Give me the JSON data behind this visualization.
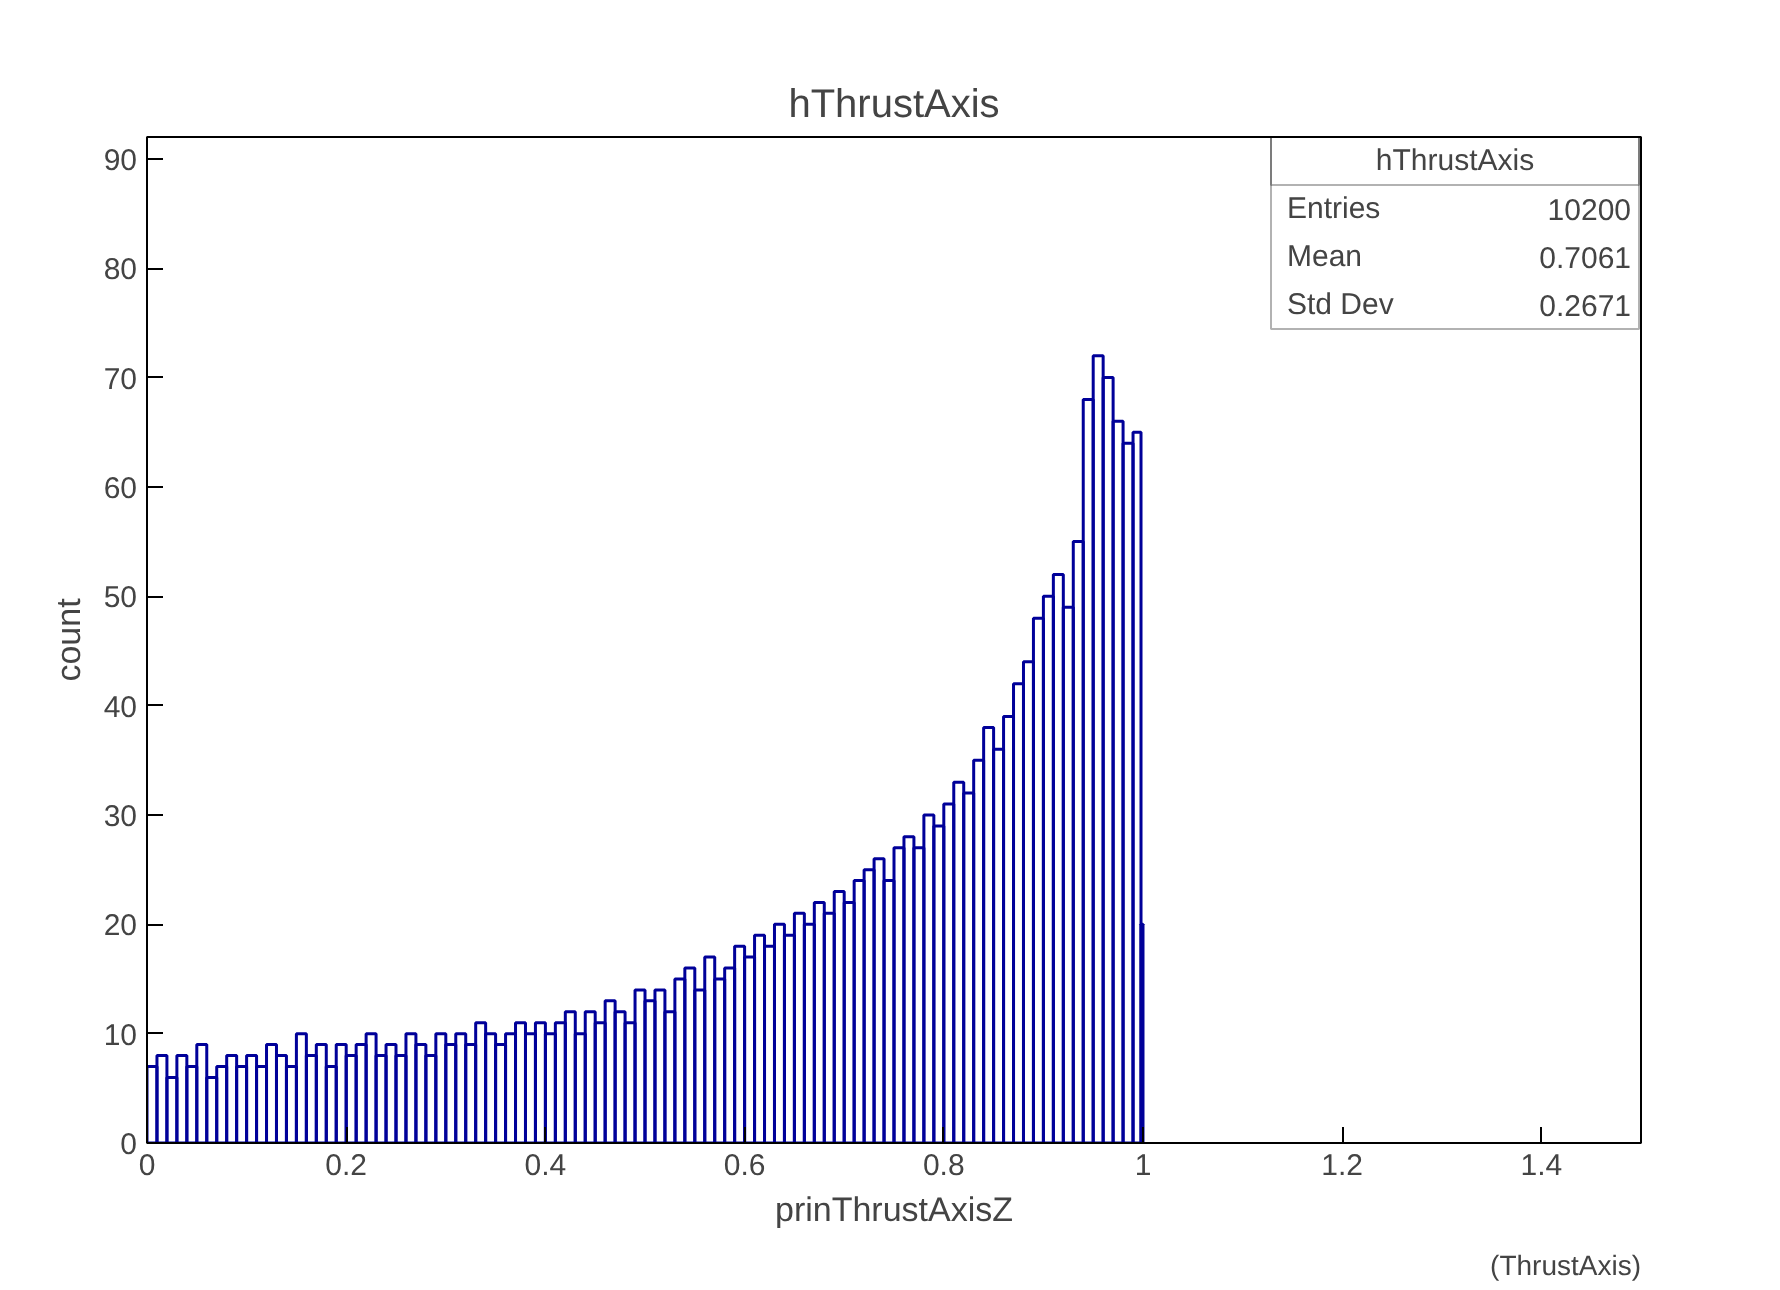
{
  "chart_data": {
    "type": "histogram",
    "title": "hThrustAxis",
    "xlabel": "prinThrustAxisZ",
    "ylabel": "count",
    "annotations": [
      "hThrustAxis",
      "Entries",
      "10200",
      "Mean",
      "0.7061",
      "Std Dev",
      "0.2671",
      "(ThrustAxis)"
    ],
    "bins": [
      0,
      0.01,
      0.02,
      0.03,
      0.04,
      0.05,
      0.06,
      0.07,
      0.08,
      0.09,
      0.1,
      0.11,
      0.12,
      0.13,
      0.14,
      0.15,
      0.16,
      0.17,
      0.18,
      0.19,
      0.2,
      0.21,
      0.22,
      0.23,
      0.24,
      0.25,
      0.26,
      0.27,
      0.28,
      0.29,
      0.3,
      0.31,
      0.32,
      0.33,
      0.34,
      0.35,
      0.36,
      0.37,
      0.38,
      0.39,
      0.4,
      0.41,
      0.42,
      0.43,
      0.44,
      0.45,
      0.46,
      0.47,
      0.48,
      0.49,
      0.5,
      0.51,
      0.52,
      0.53,
      0.54,
      0.55,
      0.56,
      0.57,
      0.58,
      0.59,
      0.6,
      0.61,
      0.62,
      0.63,
      0.64,
      0.65,
      0.66,
      0.67,
      0.68,
      0.69,
      0.7,
      0.71,
      0.72,
      0.73,
      0.74,
      0.75,
      0.76,
      0.77,
      0.78,
      0.79,
      0.8,
      0.81,
      0.82,
      0.83,
      0.84,
      0.85,
      0.86,
      0.87,
      0.88,
      0.89,
      0.9,
      0.91,
      0.92,
      0.93,
      0.94,
      0.95,
      0.96,
      0.97,
      0.98,
      0.99,
      0.998,
      1.0
    ],
    "values": [
      7,
      8,
      6,
      8,
      7,
      9,
      6,
      7,
      8,
      7,
      8,
      7,
      9,
      8,
      7,
      10,
      8,
      9,
      7,
      9,
      8,
      9,
      10,
      8,
      9,
      8,
      10,
      9,
      8,
      10,
      9,
      10,
      9,
      11,
      10,
      9,
      10,
      11,
      10,
      11,
      10,
      11,
      12,
      10,
      12,
      11,
      13,
      12,
      11,
      14,
      13,
      14,
      12,
      15,
      16,
      14,
      17,
      15,
      16,
      18,
      17,
      19,
      18,
      20,
      19,
      21,
      20,
      22,
      21,
      23,
      22,
      24,
      25,
      26,
      24,
      27,
      28,
      27,
      30,
      29,
      31,
      33,
      32,
      35,
      38,
      36,
      39,
      42,
      44,
      48,
      50,
      52,
      49,
      55,
      68,
      72,
      70,
      66,
      64,
      65,
      20
    ],
    "color": "#000099",
    "xlim": [
      0,
      1.5
    ],
    "xticks": [
      0,
      0.2,
      0.4,
      0.6,
      0.8,
      1,
      1.2,
      1.4
    ],
    "ylim": [
      0,
      92
    ],
    "yticks": [
      0,
      10,
      20,
      30,
      40,
      50,
      60,
      70,
      80,
      90
    ],
    "grid": false
  }
}
